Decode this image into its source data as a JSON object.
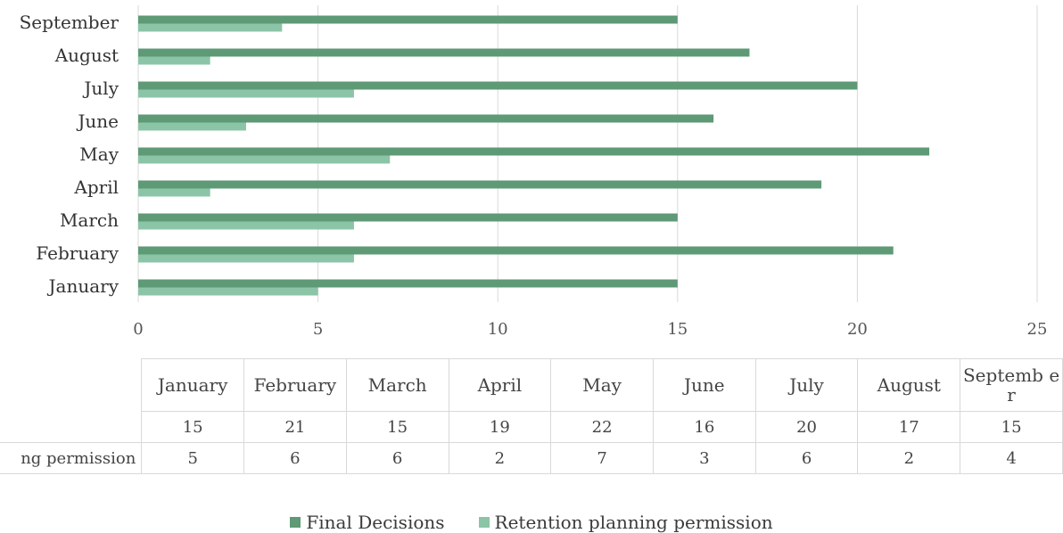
{
  "chart_data": {
    "type": "bar",
    "orientation": "horizontal",
    "categories": [
      "January",
      "February",
      "March",
      "April",
      "May",
      "June",
      "July",
      "August",
      "September"
    ],
    "series": [
      {
        "name": "Final Decisions",
        "values": [
          15,
          21,
          15,
          19,
          22,
          16,
          20,
          17,
          15
        ],
        "color": "#5d9a75"
      },
      {
        "name": "Retention planning permission",
        "values": [
          5,
          6,
          6,
          2,
          7,
          3,
          6,
          2,
          4
        ],
        "color": "#8cc4a7"
      }
    ],
    "xlim": [
      0,
      25
    ],
    "x_ticks": [
      0,
      5,
      10,
      15,
      20,
      25
    ],
    "grid": "vertical",
    "legend_position": "bottom",
    "data_table": true,
    "table_header_last": "Septemb er",
    "table_row_labels": [
      "",
      "ng permission"
    ]
  }
}
